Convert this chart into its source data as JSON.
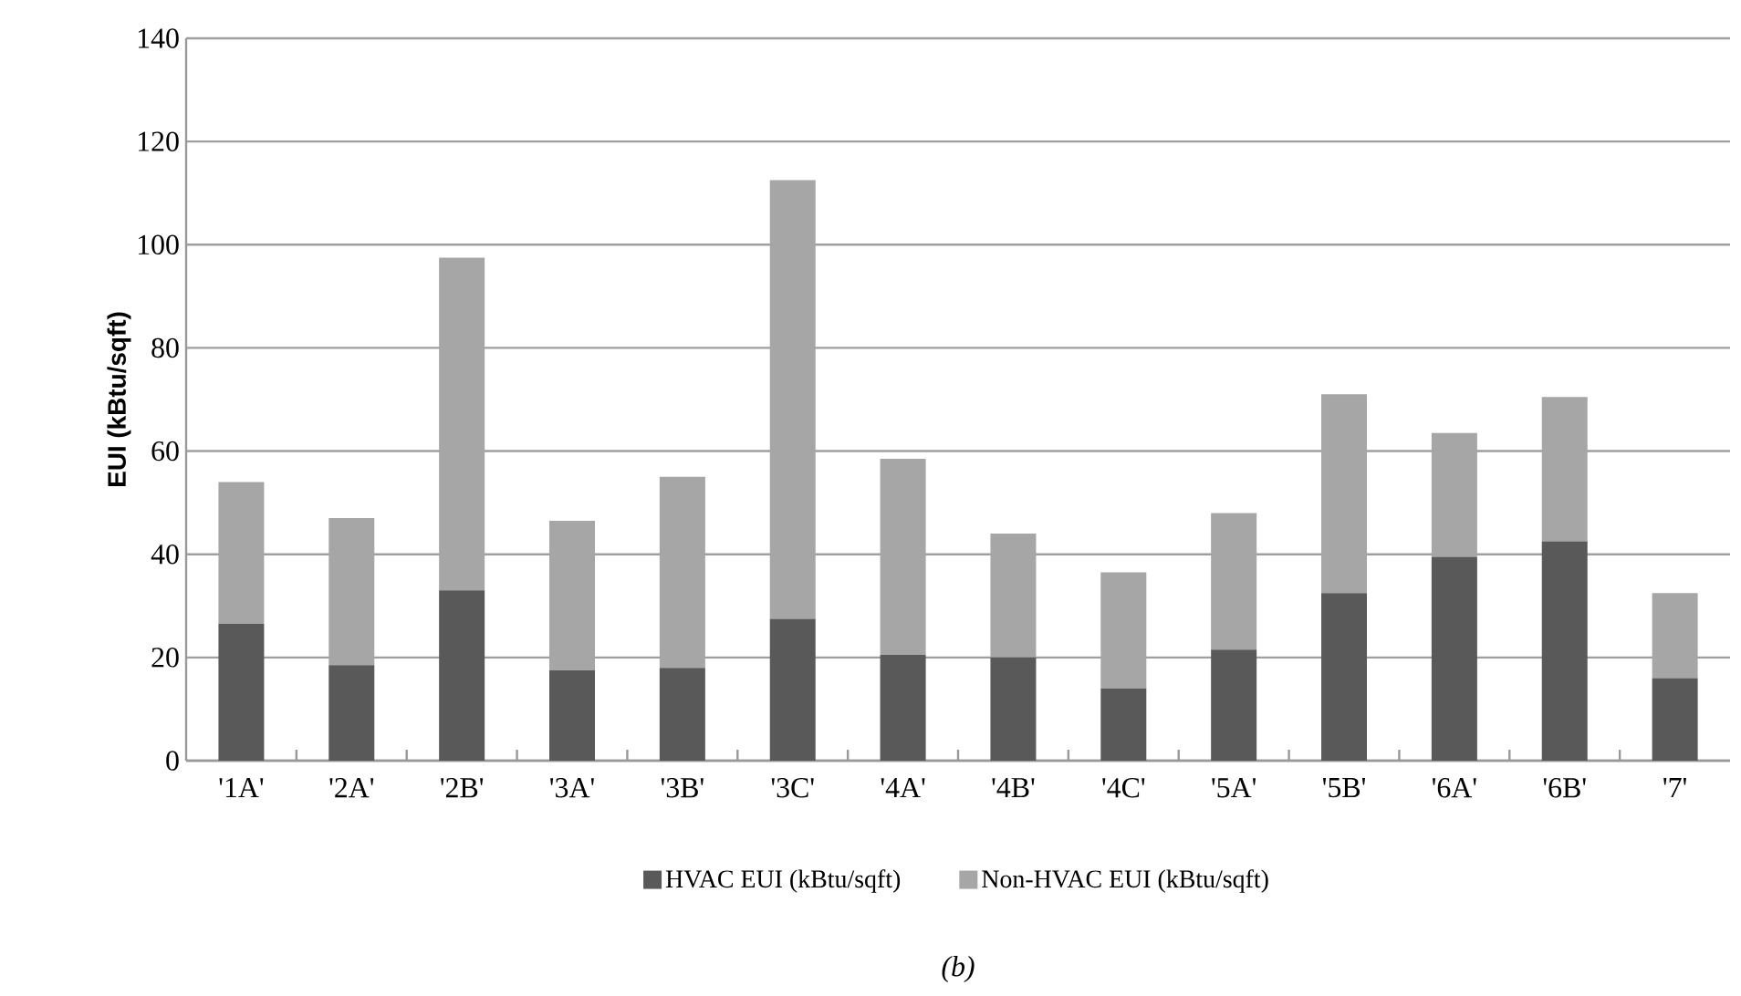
{
  "chart_data": {
    "type": "bar",
    "stacked": true,
    "ylabel": "EUI (kBtu/sqft)",
    "categories": [
      "'1A'",
      "'2A'",
      "'2B'",
      "'3A'",
      "'3B'",
      "'3C'",
      "'4A'",
      "'4B'",
      "'4C'",
      "'5A'",
      "'5B'",
      "'6A'",
      "'6B'",
      "'7'"
    ],
    "series": [
      {
        "name": "HVAC EUI (kBtu/sqft)",
        "color": "#595959",
        "values": [
          26.5,
          18.5,
          33,
          17.5,
          18,
          27.5,
          20.5,
          20,
          14,
          21.5,
          32.5,
          39.5,
          42.5,
          16
        ]
      },
      {
        "name": "Non-HVAC EUI (kBtu/sqft)",
        "color": "#a6a6a6",
        "values": [
          27.5,
          28.5,
          64.5,
          29,
          37,
          85,
          38,
          24,
          22.5,
          26.5,
          38.5,
          24,
          28,
          16.5
        ]
      }
    ],
    "ylim": [
      0,
      140
    ],
    "yticks": [
      0,
      20,
      40,
      60,
      80,
      100,
      120,
      140
    ],
    "grid": "y",
    "legend": "bottom",
    "annotations": [
      "*(b)*"
    ]
  }
}
